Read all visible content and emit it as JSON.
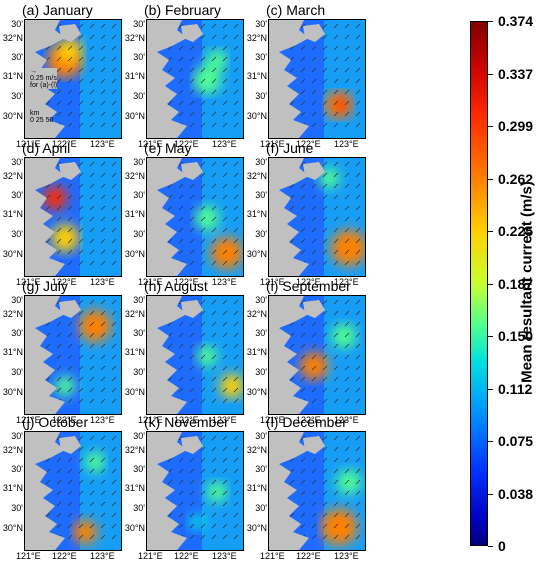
{
  "panels": [
    {
      "title": "(a) January"
    },
    {
      "title": "(b) February"
    },
    {
      "title": "(c) March"
    },
    {
      "title": "(d) April"
    },
    {
      "title": "(e) May"
    },
    {
      "title": "(f) June"
    },
    {
      "title": "(g) July"
    },
    {
      "title": "(h) August"
    },
    {
      "title": "(i) September"
    },
    {
      "title": "(j) October"
    },
    {
      "title": "(k) November"
    },
    {
      "title": "(l) December"
    }
  ],
  "lat_labels": [
    "32°N",
    "31°N",
    "30°N"
  ],
  "half_label": "30'",
  "lon_labels": [
    "121°E",
    "122°E",
    "123°E"
  ],
  "reference_arrow": {
    "line1": "0.25 m/s",
    "line2": "for (a)-(l)"
  },
  "scale_bar": {
    "unit": "km",
    "ticks": "0 25 50"
  },
  "colorbar": {
    "label": "Mean resultant current (m/s)",
    "ticks": [
      "0.374",
      "0.337",
      "0.299",
      "0.262",
      "0.225",
      "0.187",
      "0.150",
      "0.112",
      "0.075",
      "0.038",
      "0"
    ],
    "colors": [
      "#7f0000",
      "#ff2a00",
      "#ff8000",
      "#ffd000",
      "#c8ff30",
      "#00e0e0",
      "#0090ff",
      "#0030ff",
      "#000080"
    ]
  }
}
